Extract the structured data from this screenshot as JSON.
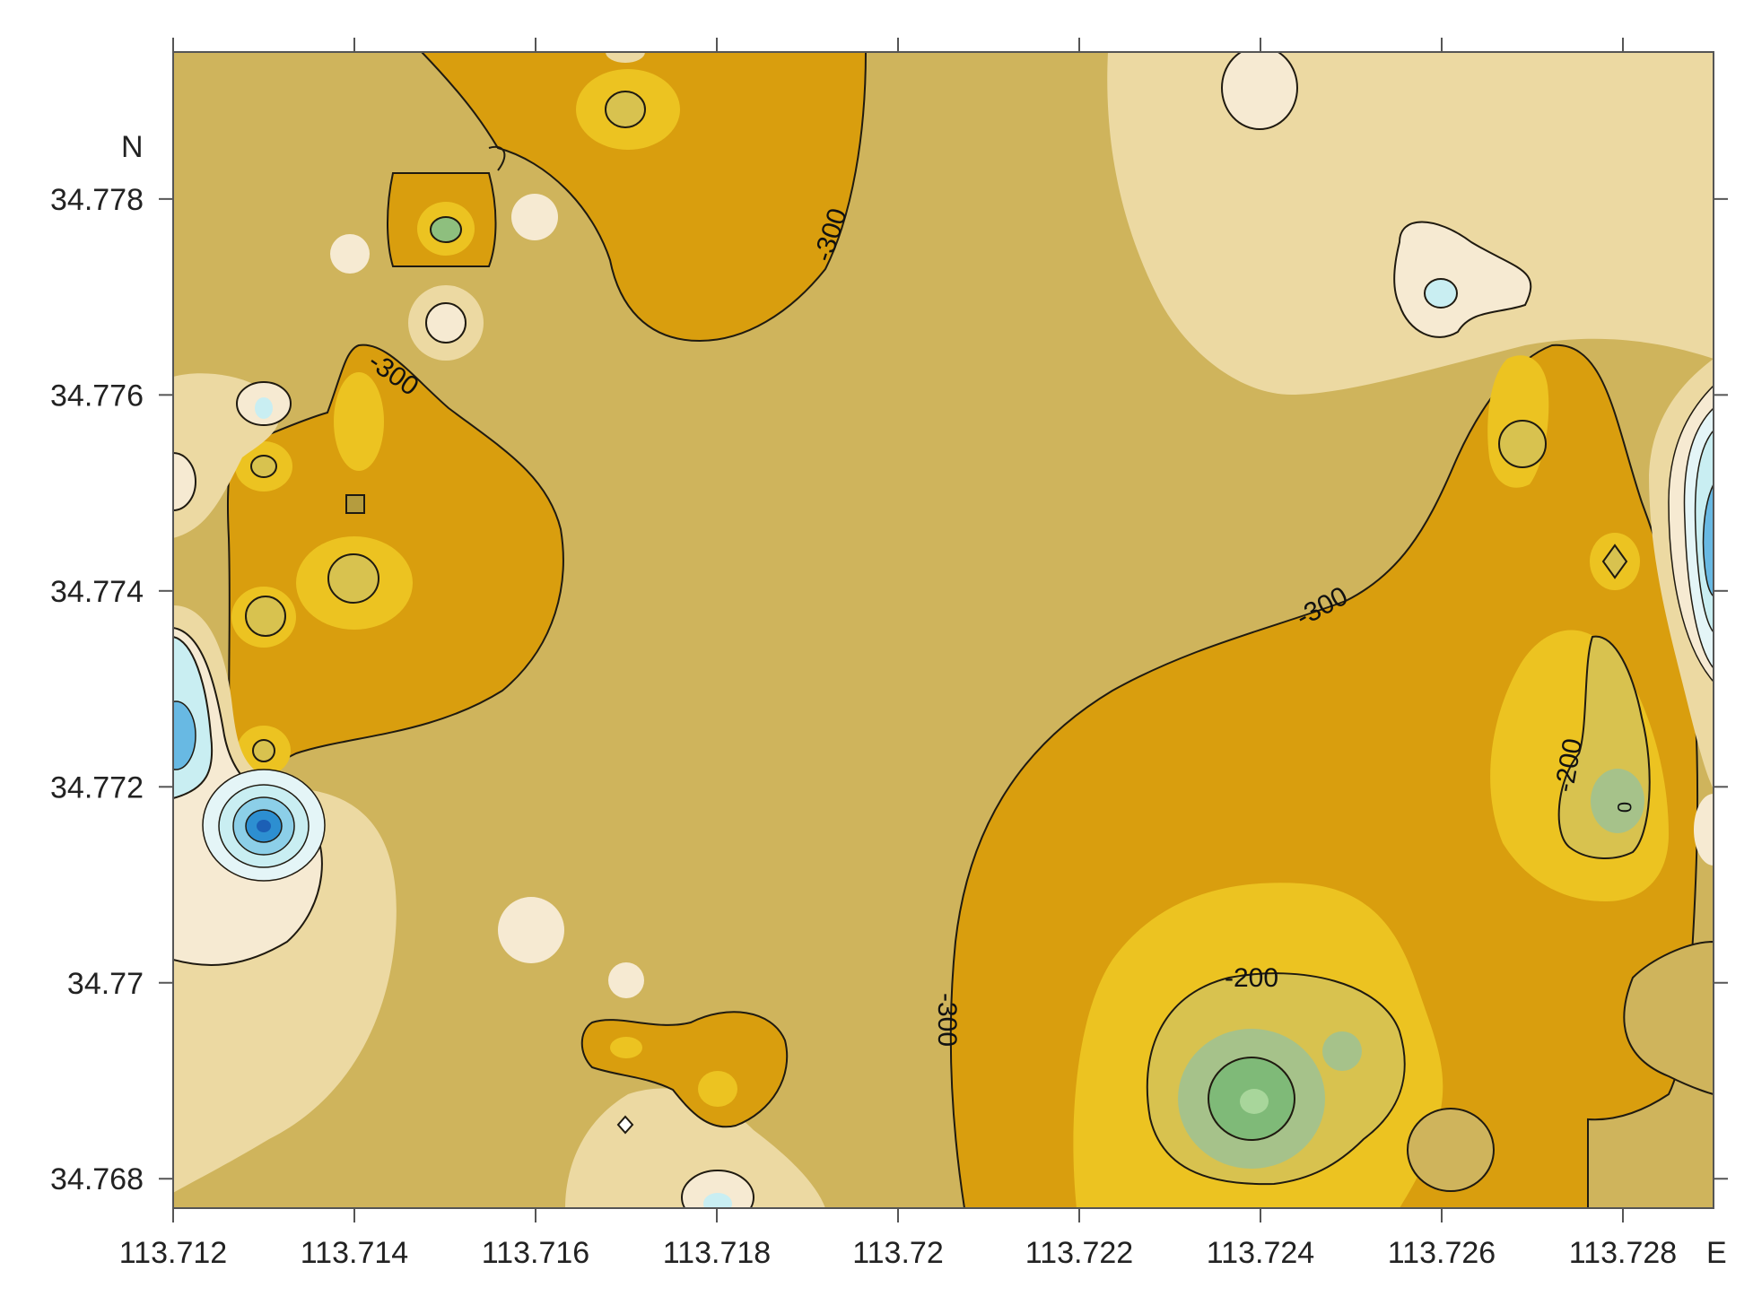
{
  "map": {
    "x_axis": {
      "end_label": "E",
      "ticks": [
        "113.712",
        "113.714",
        "113.716",
        "113.718",
        "113.72",
        "113.722",
        "113.724",
        "113.726",
        "113.728"
      ],
      "range": [
        113.712,
        113.729
      ]
    },
    "y_axis": {
      "top_label": "N",
      "ticks": [
        "34.778",
        "34.776",
        "34.774",
        "34.772",
        "34.77",
        "34.768"
      ],
      "range": [
        34.7677,
        34.7795
      ]
    },
    "contour_labels": [
      "-300",
      "-300",
      "-300",
      "-300",
      "-200",
      "-200",
      "0"
    ],
    "colors": {
      "background_level": "#cfb45c",
      "low_orange": "#d99e0e",
      "yellow": "#ecc321",
      "pale": "#ecd9a2",
      "cream": "#f6ead2",
      "green": "#8ebf7e",
      "light_blue": "#c9eef2",
      "blue": "#2d8fd1",
      "contour_line": "#1f1a10"
    }
  }
}
